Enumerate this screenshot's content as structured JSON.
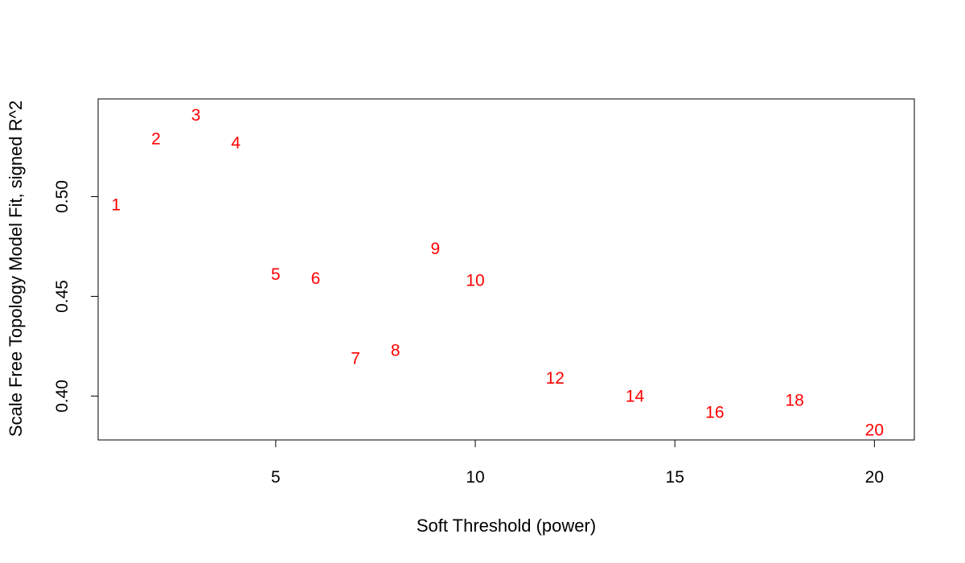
{
  "chart_data": {
    "type": "scatter",
    "title": "",
    "xlabel": "Soft Threshold (power)",
    "ylabel": "Scale Free Topology Model Fit, signed R^2",
    "xlim": [
      0.55,
      21.0
    ],
    "ylim": [
      0.378,
      0.549
    ],
    "xticks": [
      5,
      10,
      15,
      20
    ],
    "yticks": [
      0.4,
      0.45,
      0.5
    ],
    "ytick_labels": [
      "0.40",
      "0.45",
      "0.50"
    ],
    "point_color": "#FF0000",
    "grid": false,
    "points": [
      {
        "x": 1,
        "y": 0.496,
        "label": "1"
      },
      {
        "x": 2,
        "y": 0.529,
        "label": "2"
      },
      {
        "x": 3,
        "y": 0.541,
        "label": "3"
      },
      {
        "x": 4,
        "y": 0.527,
        "label": "4"
      },
      {
        "x": 5,
        "y": 0.461,
        "label": "5"
      },
      {
        "x": 6,
        "y": 0.459,
        "label": "6"
      },
      {
        "x": 7,
        "y": 0.419,
        "label": "7"
      },
      {
        "x": 8,
        "y": 0.423,
        "label": "8"
      },
      {
        "x": 9,
        "y": 0.474,
        "label": "9"
      },
      {
        "x": 10,
        "y": 0.458,
        "label": "10"
      },
      {
        "x": 12,
        "y": 0.409,
        "label": "12"
      },
      {
        "x": 14,
        "y": 0.4,
        "label": "14"
      },
      {
        "x": 16,
        "y": 0.392,
        "label": "16"
      },
      {
        "x": 18,
        "y": 0.398,
        "label": "18"
      },
      {
        "x": 20,
        "y": 0.383,
        "label": "20"
      }
    ]
  }
}
